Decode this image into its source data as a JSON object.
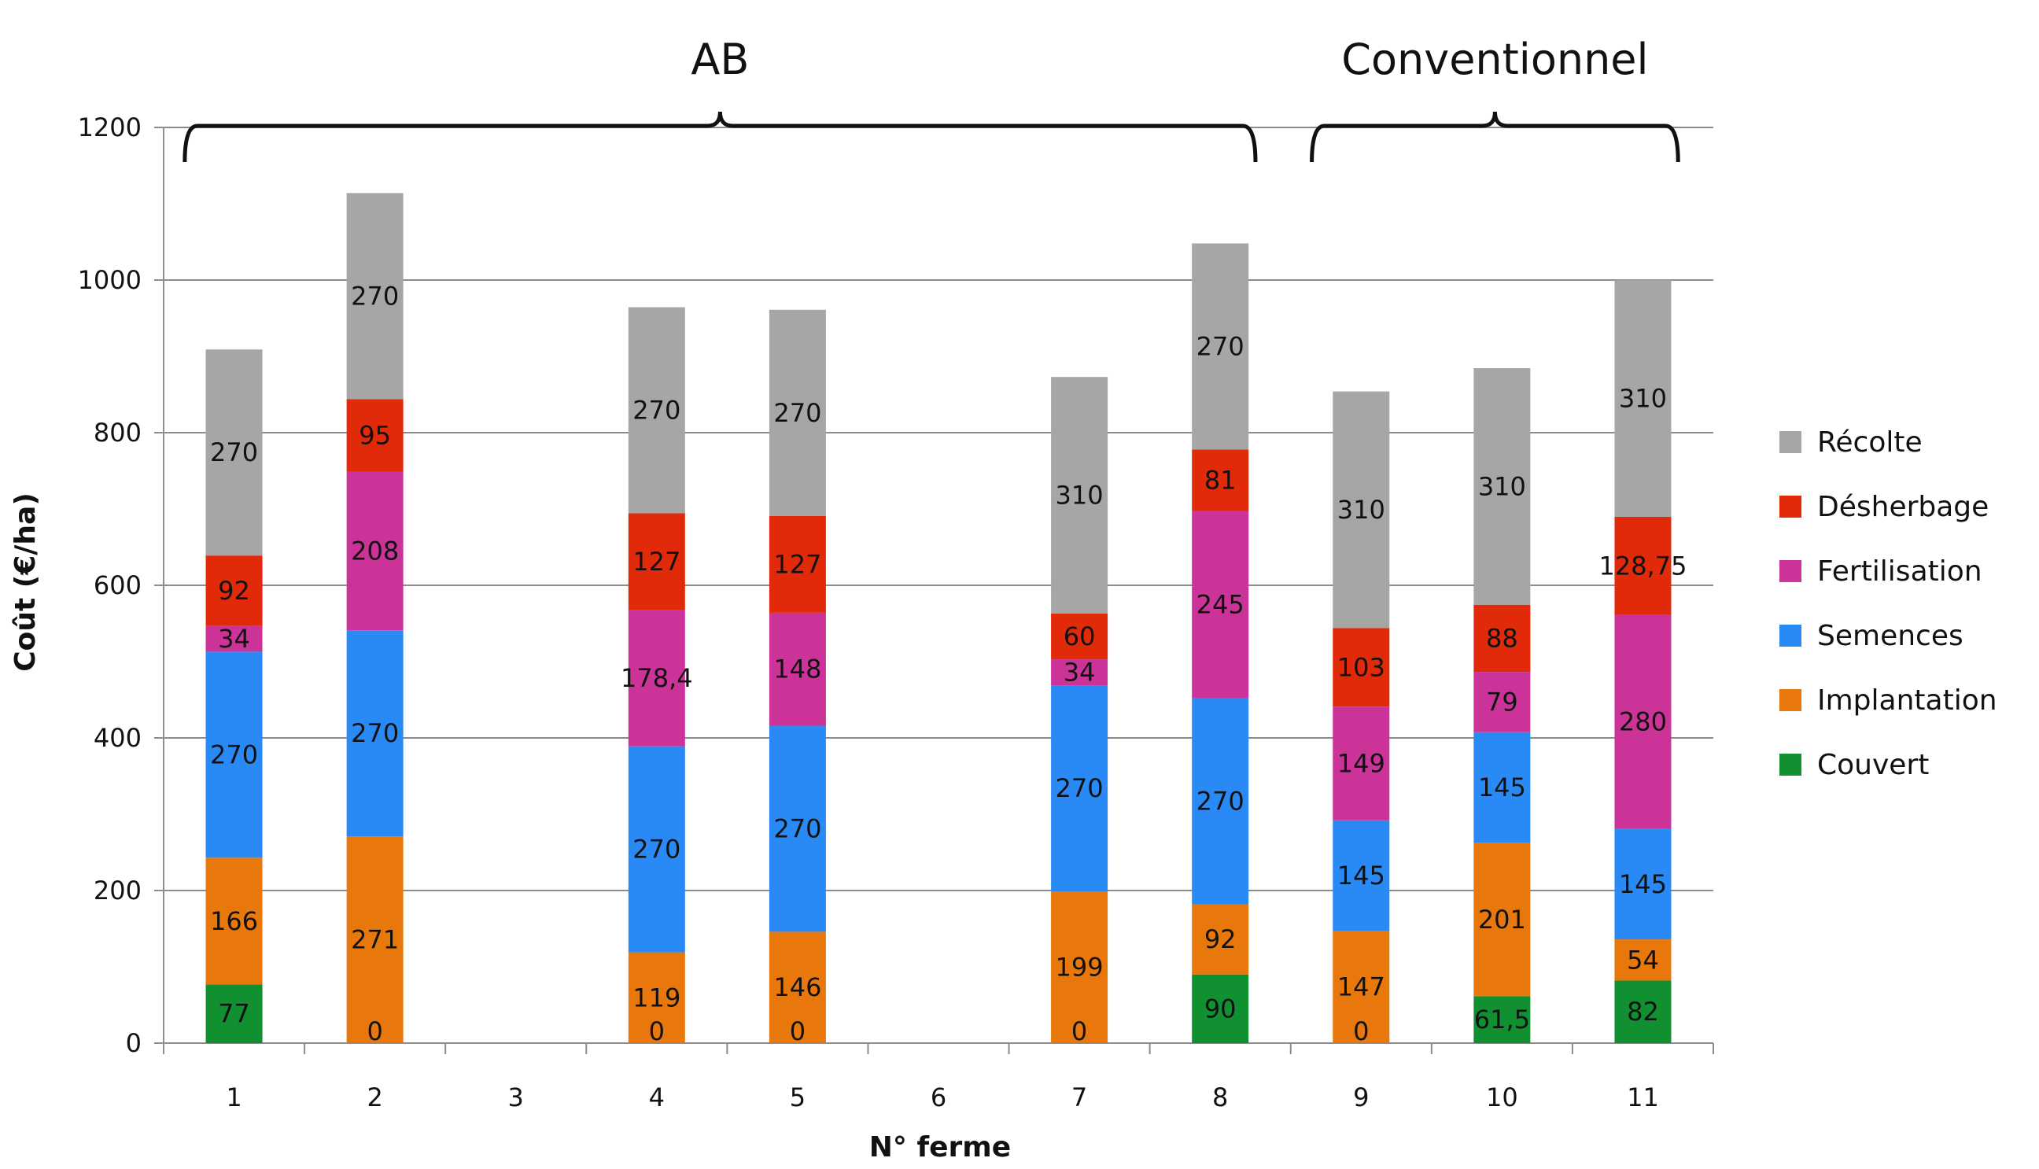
{
  "chart_data": {
    "type": "bar",
    "stacked": true,
    "xlabel": "N° ferme",
    "ylabel": "Coût (€/ha)",
    "ylim": [
      0,
      1200
    ],
    "yticks": [
      0,
      200,
      400,
      600,
      800,
      1000,
      1200
    ],
    "grid": true,
    "legend_position": "right",
    "categories": [
      "1",
      "2",
      "3",
      "4",
      "5",
      "6",
      "7",
      "8",
      "9",
      "10",
      "11"
    ],
    "groups": [
      {
        "label": "AB",
        "from": "1",
        "to": "8"
      },
      {
        "label": "Conventionnel",
        "from": "9",
        "to": "11"
      }
    ],
    "series": [
      {
        "name": "Couvert",
        "color": "#109030",
        "values": [
          77,
          0,
          null,
          0,
          0,
          null,
          0,
          90,
          0,
          61.5,
          82
        ],
        "labels": [
          "77",
          "0",
          "",
          "0",
          "0",
          "",
          "0",
          "90",
          "0",
          "61,5",
          "82"
        ]
      },
      {
        "name": "Implantation",
        "color": "#e8780c",
        "values": [
          166,
          271,
          null,
          119,
          146,
          null,
          199,
          92,
          147,
          201,
          54
        ],
        "labels": [
          "166",
          "271",
          "",
          "119",
          "146",
          "",
          "199",
          "92",
          "147",
          "201",
          "54"
        ]
      },
      {
        "name": "Semences",
        "color": "#2a8af5",
        "values": [
          270,
          270,
          null,
          270,
          270,
          null,
          270,
          270,
          145,
          145,
          145
        ],
        "labels": [
          "270",
          "270",
          "",
          "270",
          "270",
          "",
          "270",
          "270",
          "145",
          "145",
          "145"
        ]
      },
      {
        "name": "Fertilisation",
        "color": "#cc3399",
        "values": [
          34,
          208,
          null,
          178.4,
          148,
          null,
          34,
          245,
          149,
          79,
          280
        ],
        "labels": [
          "34",
          "208",
          "",
          "178,4",
          "148",
          "",
          "34",
          "245",
          "149",
          "79",
          "280"
        ]
      },
      {
        "name": "Désherbage",
        "color": "#e02a0a",
        "values": [
          92,
          95,
          null,
          127,
          127,
          null,
          60,
          81,
          103,
          88,
          128.75
        ],
        "labels": [
          "92",
          "95",
          "",
          "127",
          "127",
          "",
          "60",
          "81",
          "103",
          "88",
          "128,75"
        ]
      },
      {
        "name": "Récolte",
        "color": "#a6a6a6",
        "values": [
          270,
          270,
          null,
          270,
          270,
          null,
          310,
          270,
          310,
          310,
          310
        ],
        "labels": [
          "270",
          "270",
          "",
          "270",
          "270",
          "",
          "310",
          "270",
          "310",
          "310",
          "310"
        ]
      }
    ],
    "legend_order": [
      "Récolte",
      "Désherbage",
      "Fertilisation",
      "Semences",
      "Implantation",
      "Couvert"
    ]
  }
}
